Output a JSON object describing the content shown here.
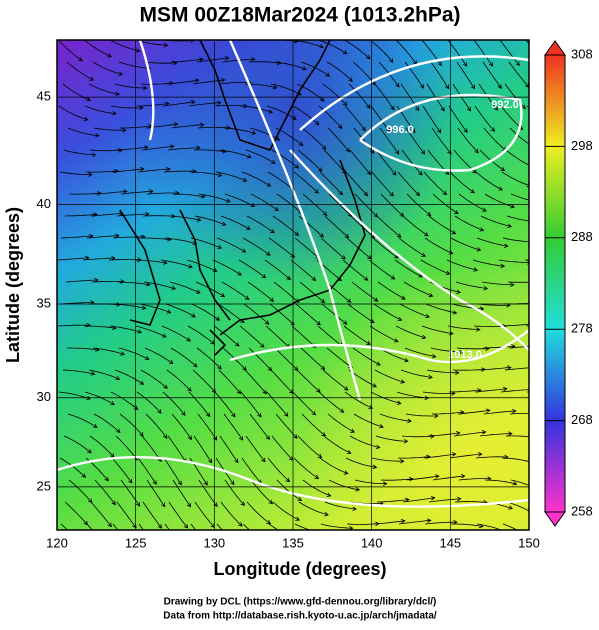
{
  "map": {
    "title": "MSM 00Z18Mar2024 (1013.2hPa)",
    "xlabel": "Longitude (degrees)",
    "ylabel": "Latitude  (degrees)",
    "xlim": [
      120,
      150
    ],
    "ylim": [
      22.5,
      47.5
    ],
    "xticks": [
      120,
      125,
      130,
      135,
      140,
      145,
      150
    ],
    "yticks": [
      25,
      30,
      35,
      40,
      45
    ],
    "colorbar": {
      "lim": [
        258,
        308
      ],
      "ticks": [
        258,
        268,
        278,
        288,
        298,
        308
      ],
      "colors": [
        "#ff33cc",
        "#3333dd",
        "#22dddd",
        "#33cc33",
        "#eeee22",
        "#ee3322"
      ]
    },
    "contour_labels": [
      "992.0",
      "996.0",
      "1013.0"
    ],
    "credits": [
      "Drawing by DCL (https://www.gfd-dennou.org/library/dcl/)",
      "Data from http://database.rish.kyoto-u.ac.jp/arch/jmadata/"
    ]
  }
}
